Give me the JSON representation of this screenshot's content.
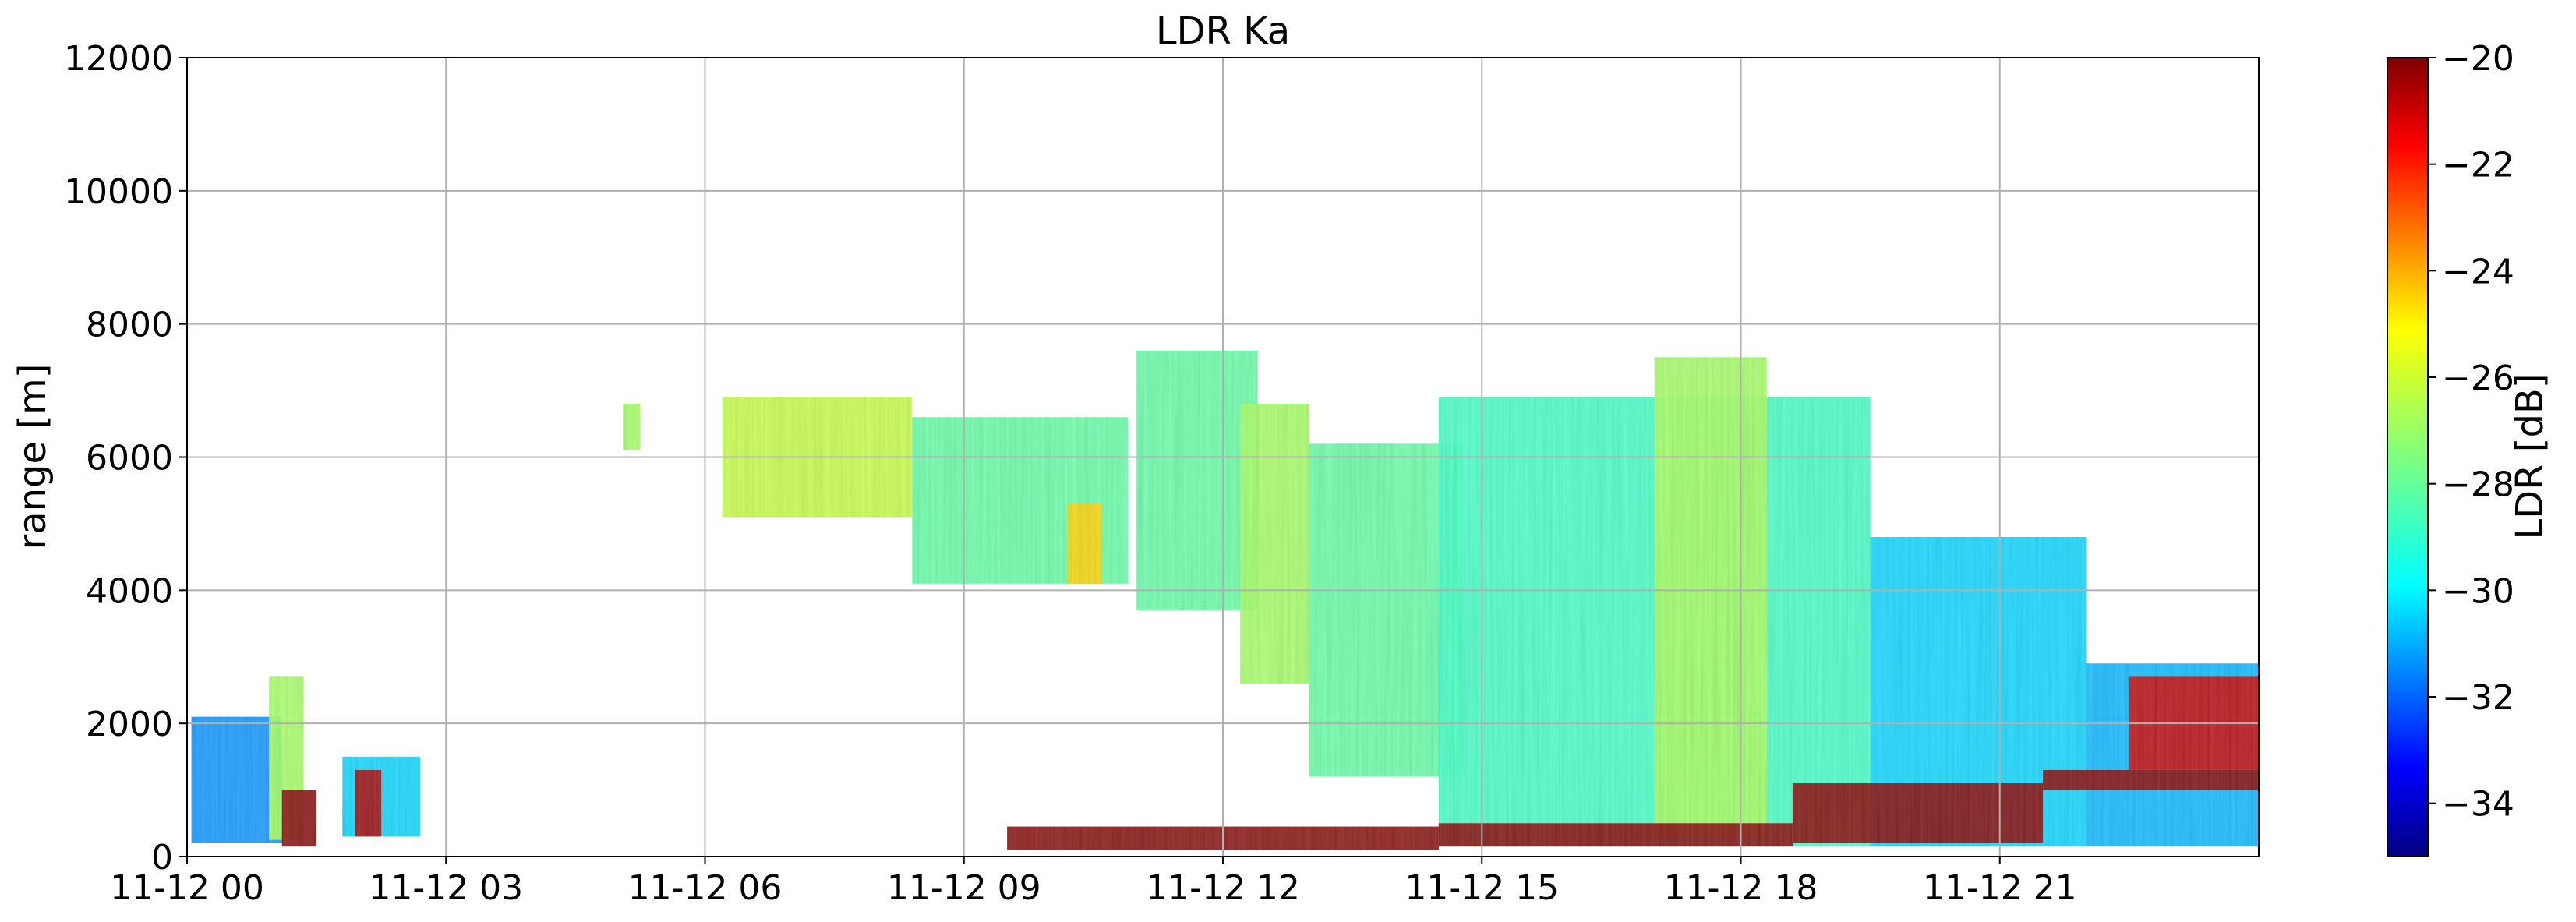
{
  "chart_data": {
    "type": "heatmap",
    "title": "LDR Ka",
    "ylabel": "range [m]",
    "xlabel": "",
    "x_ticks": [
      "11-12 00",
      "11-12 03",
      "11-12 06",
      "11-12 09",
      "11-12 12",
      "11-12 15",
      "11-12 18",
      "11-12 21"
    ],
    "x_range_hours": [
      0,
      24
    ],
    "y_ticks": [
      0,
      2000,
      4000,
      6000,
      8000,
      10000,
      12000
    ],
    "y_tick_labels": [
      "0",
      "2000",
      "4000",
      "6000",
      "8000",
      "10000",
      "12000"
    ],
    "ylim": [
      0,
      12000
    ],
    "grid": true,
    "colorbar": {
      "label": "LDR [dB]",
      "range": [
        -35,
        -20
      ],
      "ticks": [
        -20,
        -22,
        -24,
        -26,
        -28,
        -30,
        -32,
        -34
      ],
      "tick_labels": [
        "−20",
        "−22",
        "−24",
        "−26",
        "−28",
        "−30",
        "−32",
        "−34"
      ],
      "colormap": "jet"
    },
    "regions": [
      {
        "t0": 0.05,
        "t1": 1.1,
        "bottom": 200,
        "top": 2100,
        "ldr": -31
      },
      {
        "t0": 0.95,
        "t1": 1.35,
        "bottom": 250,
        "top": 2700,
        "ldr": -27
      },
      {
        "t0": 1.1,
        "t1": 1.5,
        "bottom": 150,
        "top": 1000,
        "ldr": -20
      },
      {
        "t0": 1.8,
        "t1": 2.7,
        "bottom": 300,
        "top": 1500,
        "ldr": -30
      },
      {
        "t0": 1.95,
        "t1": 2.25,
        "bottom": 300,
        "top": 1300,
        "ldr": -20.5
      },
      {
        "t0": 5.05,
        "t1": 5.25,
        "bottom": 6100,
        "top": 6800,
        "ldr": -27
      },
      {
        "t0": 6.2,
        "t1": 8.4,
        "bottom": 5100,
        "top": 6900,
        "ldr": -26.5
      },
      {
        "t0": 8.4,
        "t1": 10.9,
        "bottom": 4100,
        "top": 6600,
        "ldr": -28
      },
      {
        "t0": 10.2,
        "t1": 10.6,
        "bottom": 4100,
        "top": 5300,
        "ldr": -25
      },
      {
        "t0": 11.0,
        "t1": 12.4,
        "bottom": 3700,
        "top": 7600,
        "ldr": -28
      },
      {
        "t0": 12.2,
        "t1": 13.0,
        "bottom": 2600,
        "top": 6800,
        "ldr": -27
      },
      {
        "t0": 13.0,
        "t1": 14.8,
        "bottom": 1200,
        "top": 6200,
        "ldr": -28
      },
      {
        "t0": 14.5,
        "t1": 19.5,
        "bottom": 150,
        "top": 6900,
        "ldr": -28.5
      },
      {
        "t0": 17.0,
        "t1": 18.3,
        "bottom": 300,
        "top": 7500,
        "ldr": -27
      },
      {
        "t0": 19.5,
        "t1": 22.0,
        "bottom": 150,
        "top": 4800,
        "ldr": -30
      },
      {
        "t0": 22.0,
        "t1": 24.0,
        "bottom": 150,
        "top": 2900,
        "ldr": -30.5
      },
      {
        "t0": 22.5,
        "t1": 24.0,
        "bottom": 1300,
        "top": 2700,
        "ldr": -21
      },
      {
        "t0": 14.5,
        "t1": 18.6,
        "bottom": 150,
        "top": 500,
        "ldr": -20
      },
      {
        "t0": 18.6,
        "t1": 21.5,
        "bottom": 200,
        "top": 1100,
        "ldr": -20
      },
      {
        "t0": 21.5,
        "t1": 24.0,
        "bottom": 1000,
        "top": 1300,
        "ldr": -20
      },
      {
        "t0": 9.5,
        "t1": 14.5,
        "bottom": 100,
        "top": 450,
        "ldr": -20
      }
    ]
  }
}
